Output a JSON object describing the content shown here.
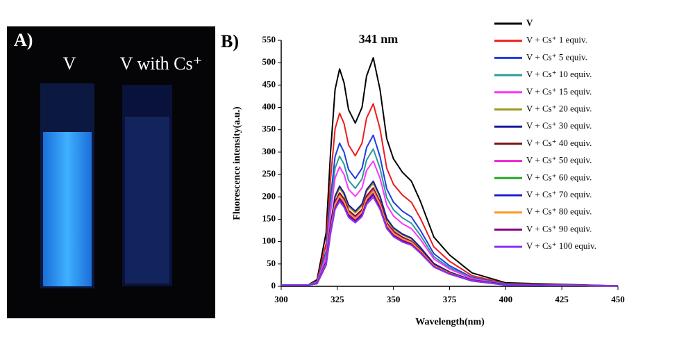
{
  "photo": {
    "panel_label": "A)",
    "captions": [
      "V",
      "V with Cs⁺"
    ]
  },
  "chart_data": {
    "type": "line",
    "panel_label": "B)",
    "annotation": "341 nm",
    "x_label": "Wavelength(nm)",
    "y_label": "Fluorescence intensity(a.u.)",
    "xlim": [
      300,
      450
    ],
    "xticks": [
      300,
      325,
      350,
      375,
      400,
      425,
      450
    ],
    "ylim": [
      0,
      550
    ],
    "yticks": [
      0,
      50,
      100,
      150,
      200,
      250,
      300,
      350,
      400,
      450,
      500,
      550
    ],
    "x": [
      300,
      312,
      316,
      320,
      322,
      324,
      326,
      328,
      330,
      333,
      336,
      338,
      341,
      344,
      347,
      350,
      354,
      358,
      362,
      368,
      375,
      385,
      400,
      450
    ],
    "series": [
      {
        "name": "V",
        "color": "#000000",
        "values": [
          3,
          3,
          15,
          120,
          300,
          440,
          486,
          455,
          395,
          365,
          400,
          470,
          511,
          440,
          330,
          285,
          255,
          235,
          190,
          110,
          70,
          30,
          8,
          1
        ]
      },
      {
        "name": "V + Cs⁺ 1 equiv.",
        "color": "#ee1c1c",
        "values": [
          3,
          3,
          12,
          96,
          240,
          352,
          387,
          364,
          316,
          292,
          320,
          376,
          408,
          352,
          264,
          228,
          204,
          188,
          152,
          88,
          56,
          24,
          6,
          1
        ]
      },
      {
        "name": "V + Cs⁺ 5 equiv.",
        "color": "#1c3fe0",
        "values": [
          3,
          3,
          10,
          79,
          198,
          290,
          320,
          300,
          261,
          241,
          264,
          310,
          338,
          290,
          218,
          188,
          168,
          155,
          125,
          73,
          46,
          20,
          5,
          1
        ]
      },
      {
        "name": "V + Cs⁺ 10 equiv.",
        "color": "#2a9a9a",
        "values": [
          3,
          3,
          9,
          72,
          180,
          264,
          291,
          273,
          237,
          219,
          240,
          282,
          307,
          264,
          198,
          171,
          153,
          141,
          114,
          66,
          42,
          18,
          5,
          1
        ]
      },
      {
        "name": "V + Cs⁺ 15 equiv.",
        "color": "#ff33ff",
        "values": [
          3,
          3,
          8,
          66,
          165,
          242,
          267,
          250,
          217,
          201,
          220,
          259,
          280,
          242,
          182,
          157,
          140,
          129,
          105,
          61,
          39,
          17,
          4,
          1
        ]
      },
      {
        "name": "V + Cs⁺ 20 equiv.",
        "color": "#9a9a20",
        "values": [
          3,
          3,
          7,
          54,
          135,
          198,
          219,
          205,
          178,
          164,
          180,
          212,
          230,
          198,
          149,
          128,
          115,
          106,
          86,
          50,
          32,
          14,
          4,
          1
        ]
      },
      {
        "name": "V + Cs⁺ 30 equiv.",
        "color": "#1a1a9a",
        "values": [
          3,
          3,
          7,
          55,
          138,
          202,
          224,
          209,
          182,
          168,
          184,
          216,
          235,
          202,
          152,
          131,
          117,
          108,
          87,
          51,
          32,
          14,
          4,
          1
        ]
      },
      {
        "name": "V + Cs⁺ 40 equiv.",
        "color": "#7a1010",
        "values": [
          3,
          3,
          6,
          52,
          129,
          189,
          209,
          196,
          170,
          157,
          172,
          202,
          220,
          189,
          142,
          123,
          110,
          101,
          82,
          47,
          30,
          13,
          3,
          1
        ]
      },
      {
        "name": "V + Cs⁺ 50 equiv.",
        "color": "#ee22cc",
        "values": [
          3,
          3,
          6,
          50,
          126,
          185,
          204,
          191,
          166,
          153,
          168,
          197,
          215,
          185,
          139,
          120,
          107,
          99,
          80,
          46,
          29,
          13,
          3,
          1
        ]
      },
      {
        "name": "V + Cs⁺ 60 equiv.",
        "color": "#22aa22",
        "values": [
          3,
          3,
          6,
          49,
          123,
          180,
          199,
          187,
          162,
          150,
          164,
          193,
          210,
          180,
          135,
          117,
          105,
          96,
          78,
          45,
          29,
          12,
          3,
          1
        ]
      },
      {
        "name": "V + Cs⁺ 70 equiv.",
        "color": "#2222cc",
        "values": [
          3,
          3,
          6,
          49,
          122,
          178,
          197,
          184,
          160,
          148,
          162,
          190,
          207,
          178,
          134,
          115,
          103,
          95,
          77,
          45,
          28,
          12,
          3,
          1
        ]
      },
      {
        "name": "V + Cs⁺ 80 equiv.",
        "color": "#ff9922",
        "values": [
          3,
          3,
          6,
          50,
          125,
          183,
          202,
          189,
          164,
          151,
          166,
          195,
          212,
          183,
          137,
          118,
          106,
          98,
          79,
          46,
          29,
          12,
          3,
          1
        ]
      },
      {
        "name": "V + Cs⁺ 90 equiv.",
        "color": "#880088",
        "values": [
          3,
          3,
          6,
          48,
          120,
          176,
          194,
          182,
          158,
          146,
          160,
          188,
          204,
          176,
          132,
          114,
          102,
          94,
          76,
          44,
          28,
          12,
          3,
          1
        ]
      },
      {
        "name": "V + Cs⁺ 100 equiv.",
        "color": "#8833ff",
        "values": [
          3,
          3,
          6,
          47,
          117,
          172,
          190,
          177,
          154,
          142,
          156,
          183,
          199,
          172,
          129,
          111,
          99,
          92,
          74,
          43,
          27,
          12,
          3,
          1
        ]
      }
    ]
  }
}
